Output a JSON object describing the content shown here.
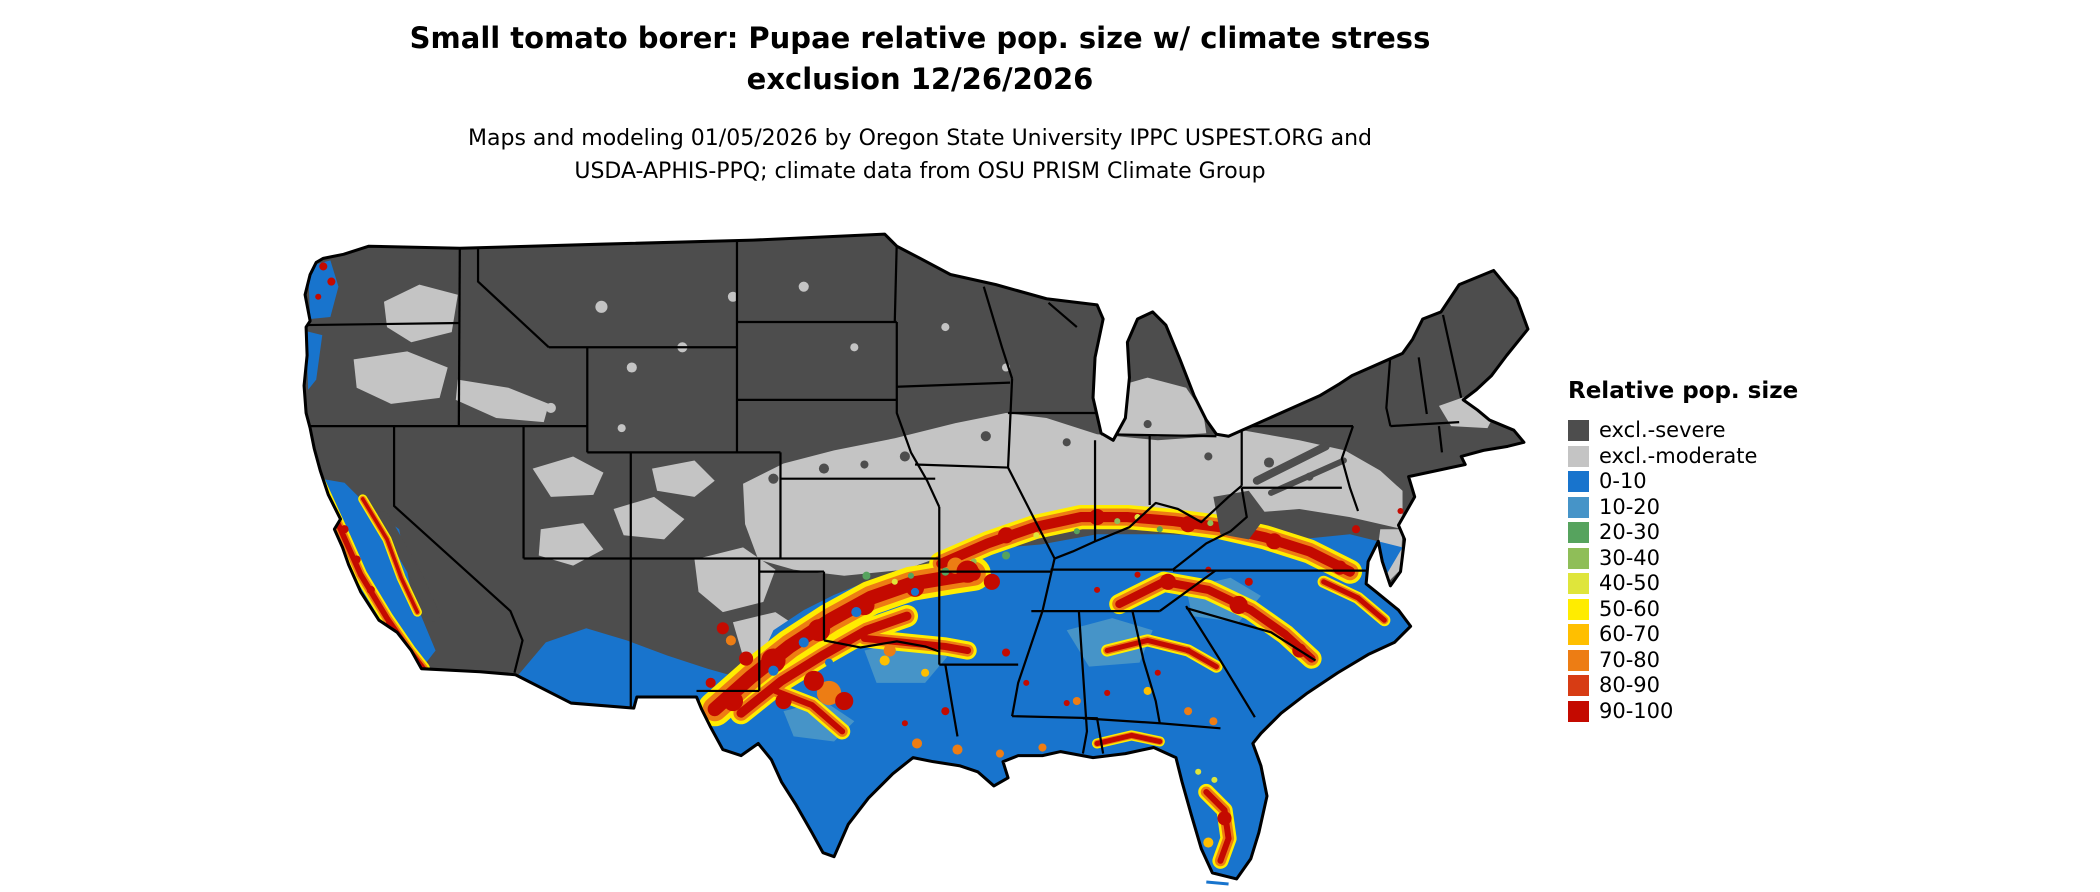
{
  "title": {
    "line1": "Small tomato borer: Pupae relative pop. size w/ climate stress",
    "line2": "exclusion 12/26/2026"
  },
  "subtitle": {
    "line1": "Maps and modeling 01/05/2026 by Oregon State University IPPC USPEST.ORG and",
    "line2": "USDA-APHIS-PPQ; climate data from OSU PRISM Climate Group"
  },
  "map": {
    "area": "Contiguous United States",
    "kind": "raster risk map with state boundaries"
  },
  "legend": {
    "title": "Relative pop. size",
    "items": [
      {
        "label": "excl.-severe",
        "color": "#4d4d4d"
      },
      {
        "label": "excl.-moderate",
        "color": "#c4c4c4"
      },
      {
        "label": "0-10",
        "color": "#1874cd"
      },
      {
        "label": "10-20",
        "color": "#4694c8"
      },
      {
        "label": "20-30",
        "color": "#56a35e"
      },
      {
        "label": "30-40",
        "color": "#8fbe58"
      },
      {
        "label": "40-50",
        "color": "#dfe53b"
      },
      {
        "label": "50-60",
        "color": "#ffec00"
      },
      {
        "label": "60-70",
        "color": "#ffbf00"
      },
      {
        "label": "70-80",
        "color": "#ed7d14"
      },
      {
        "label": "80-90",
        "color": "#d73c14"
      },
      {
        "label": "90-100",
        "color": "#c40a00"
      }
    ]
  }
}
